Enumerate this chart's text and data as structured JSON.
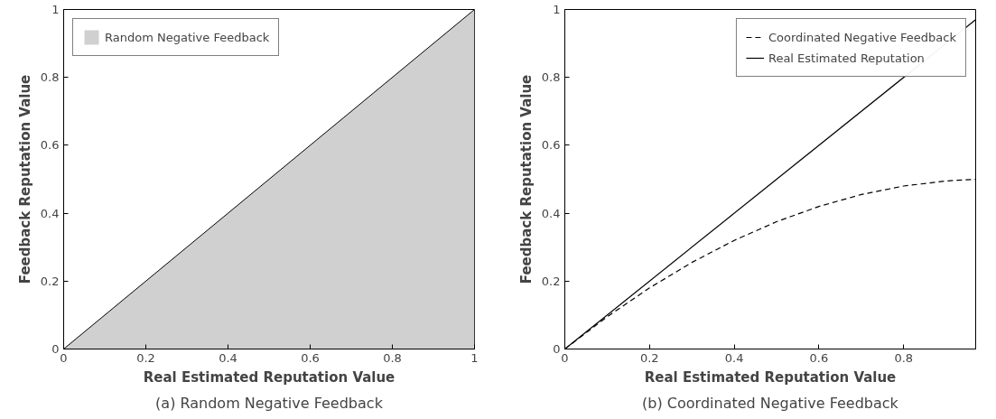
{
  "chart_data": [
    {
      "type": "area",
      "title": "(a) Random Negative Feedback",
      "xlabel": "Real Estimated Reputation Value",
      "ylabel": "Feedback Reputation Value",
      "xlim": [
        0,
        1
      ],
      "ylim": [
        0,
        1
      ],
      "xticks": [
        0,
        0.2,
        0.4,
        0.6,
        0.8,
        1
      ],
      "yticks": [
        0,
        0.2,
        0.4,
        0.6,
        0.8,
        1
      ],
      "grid": false,
      "legend": "top left",
      "series": [
        {
          "name": "Random Negative Feedback",
          "color": "#d0d0d0",
          "x": [
            0,
            1
          ],
          "values": [
            0,
            1
          ]
        }
      ]
    },
    {
      "type": "line",
      "title": "(b) Coordinated Negative Feedback",
      "xlabel": "Real Estimated Reputation Value",
      "ylabel": "Feedback Reputation Value",
      "xlim": [
        0,
        0.97
      ],
      "ylim": [
        0,
        1
      ],
      "xticks": [
        0,
        0.2,
        0.4,
        0.6,
        0.8
      ],
      "yticks": [
        0,
        0.2,
        0.4,
        0.6,
        0.8,
        1
      ],
      "grid": false,
      "legend": "top right",
      "series": [
        {
          "name": "Coordinated Negative Feedback",
          "color": "#000000",
          "line_style": "dashed",
          "x": [
            0,
            0.1,
            0.2,
            0.3,
            0.4,
            0.5,
            0.6,
            0.7,
            0.8,
            0.9,
            0.97
          ],
          "values": [
            0,
            0.095,
            0.18,
            0.255,
            0.32,
            0.375,
            0.42,
            0.455,
            0.48,
            0.495,
            0.5
          ]
        },
        {
          "name": "Real Estimated Reputation",
          "color": "#000000",
          "line_style": "solid",
          "x": [
            0,
            0.97
          ],
          "values": [
            0,
            0.97
          ]
        }
      ]
    }
  ]
}
